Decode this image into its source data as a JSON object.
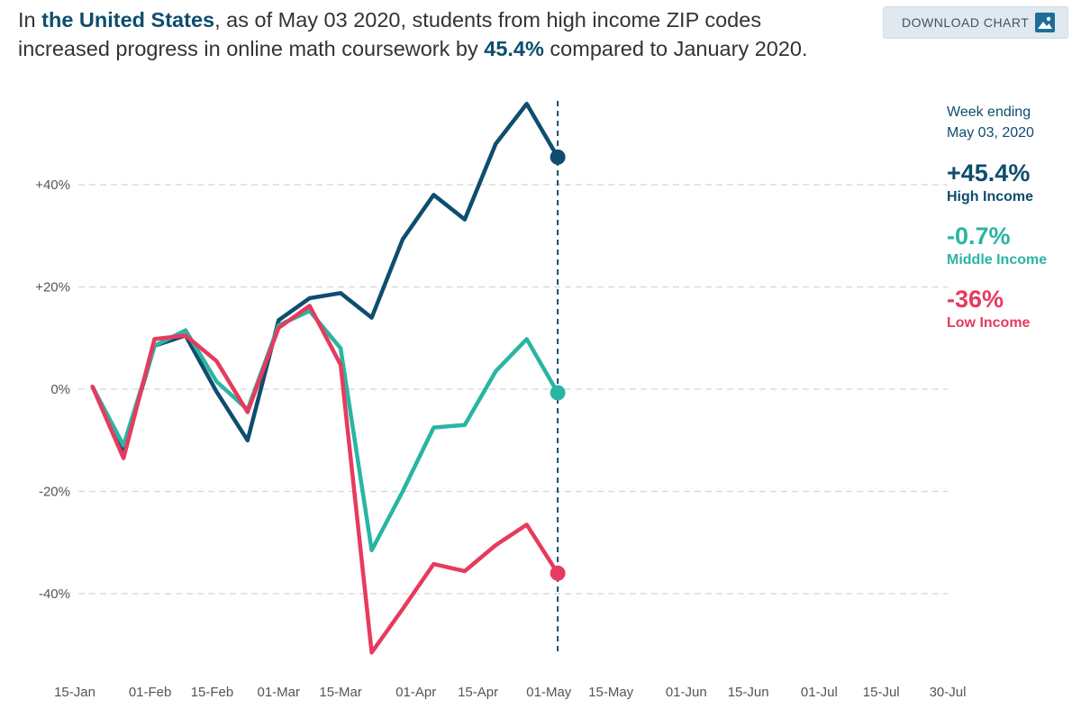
{
  "headline": {
    "prefix": "In ",
    "place": "the United States",
    "mid": ", as of May 03 2020, students from high income ZIP codes increased progress in online math coursework by ",
    "pct": "45.4%",
    "suffix": " compared to January 2020."
  },
  "download": {
    "label": "DOWNLOAD CHART",
    "icon": "image-icon"
  },
  "legend": {
    "week_line1": "Week ending",
    "week_line2": "May 03, 2020",
    "items": [
      {
        "value": "+45.4%",
        "name": "High Income",
        "color": "#0e4d6e"
      },
      {
        "value": "-0.7%",
        "name": "Middle Income",
        "color": "#2ab5a3"
      },
      {
        "value": "-36%",
        "name": "Low Income",
        "color": "#e63b5e"
      }
    ]
  },
  "chart_data": {
    "type": "line",
    "x": [
      "2020-01-19",
      "2020-01-26",
      "2020-02-02",
      "2020-02-09",
      "2020-02-16",
      "2020-02-23",
      "2020-03-01",
      "2020-03-08",
      "2020-03-15",
      "2020-03-22",
      "2020-03-29",
      "2020-04-05",
      "2020-04-12",
      "2020-04-19",
      "2020-04-26",
      "2020-05-03"
    ],
    "series": [
      {
        "name": "High Income",
        "color": "#0e4d6e",
        "values": [
          0.5,
          -12,
          8.5,
          10.5,
          -0.5,
          -10,
          13.5,
          17.8,
          18.8,
          14,
          29.3,
          38,
          33.2,
          48,
          55.8,
          45.4
        ]
      },
      {
        "name": "Middle Income",
        "color": "#2ab5a3",
        "values": [
          0.5,
          -11,
          8.5,
          11.5,
          1.5,
          -4,
          12.5,
          15.3,
          8,
          -31.5,
          -20,
          -7.5,
          -7,
          3.5,
          9.8,
          -0.7
        ]
      },
      {
        "name": "Low Income",
        "color": "#e63b5e",
        "values": [
          0.5,
          -13.5,
          9.8,
          10.5,
          5.5,
          -4.5,
          12,
          16.3,
          4.8,
          -51.5,
          -43,
          -34.2,
          -35.6,
          -30.5,
          -26.5,
          -36
        ]
      }
    ],
    "marker_date": "2020-05-03",
    "x_ticks": [
      {
        "date": "2020-01-15",
        "label": "15-Jan"
      },
      {
        "date": "2020-02-01",
        "label": "01-Feb"
      },
      {
        "date": "2020-02-15",
        "label": "15-Feb"
      },
      {
        "date": "2020-03-01",
        "label": "01-Mar"
      },
      {
        "date": "2020-03-15",
        "label": "15-Mar"
      },
      {
        "date": "2020-04-01",
        "label": "01-Apr"
      },
      {
        "date": "2020-04-15",
        "label": "15-Apr"
      },
      {
        "date": "2020-05-01",
        "label": "01-May"
      },
      {
        "date": "2020-05-15",
        "label": "15-May"
      },
      {
        "date": "2020-06-01",
        "label": "01-Jun"
      },
      {
        "date": "2020-06-15",
        "label": "15-Jun"
      },
      {
        "date": "2020-07-01",
        "label": "01-Jul"
      },
      {
        "date": "2020-07-15",
        "label": "15-Jul"
      },
      {
        "date": "2020-07-30",
        "label": "30-Jul"
      }
    ],
    "y_ticks": [
      {
        "value": 40,
        "label": "+40%"
      },
      {
        "value": 20,
        "label": "+20%"
      },
      {
        "value": 0,
        "label": "0%"
      },
      {
        "value": -20,
        "label": "-20%"
      },
      {
        "value": -40,
        "label": "-40%"
      }
    ],
    "xlim": [
      "2020-01-15",
      "2020-07-30"
    ],
    "ylim": [
      -55,
      60
    ],
    "grid": true,
    "legend_position": "right"
  }
}
